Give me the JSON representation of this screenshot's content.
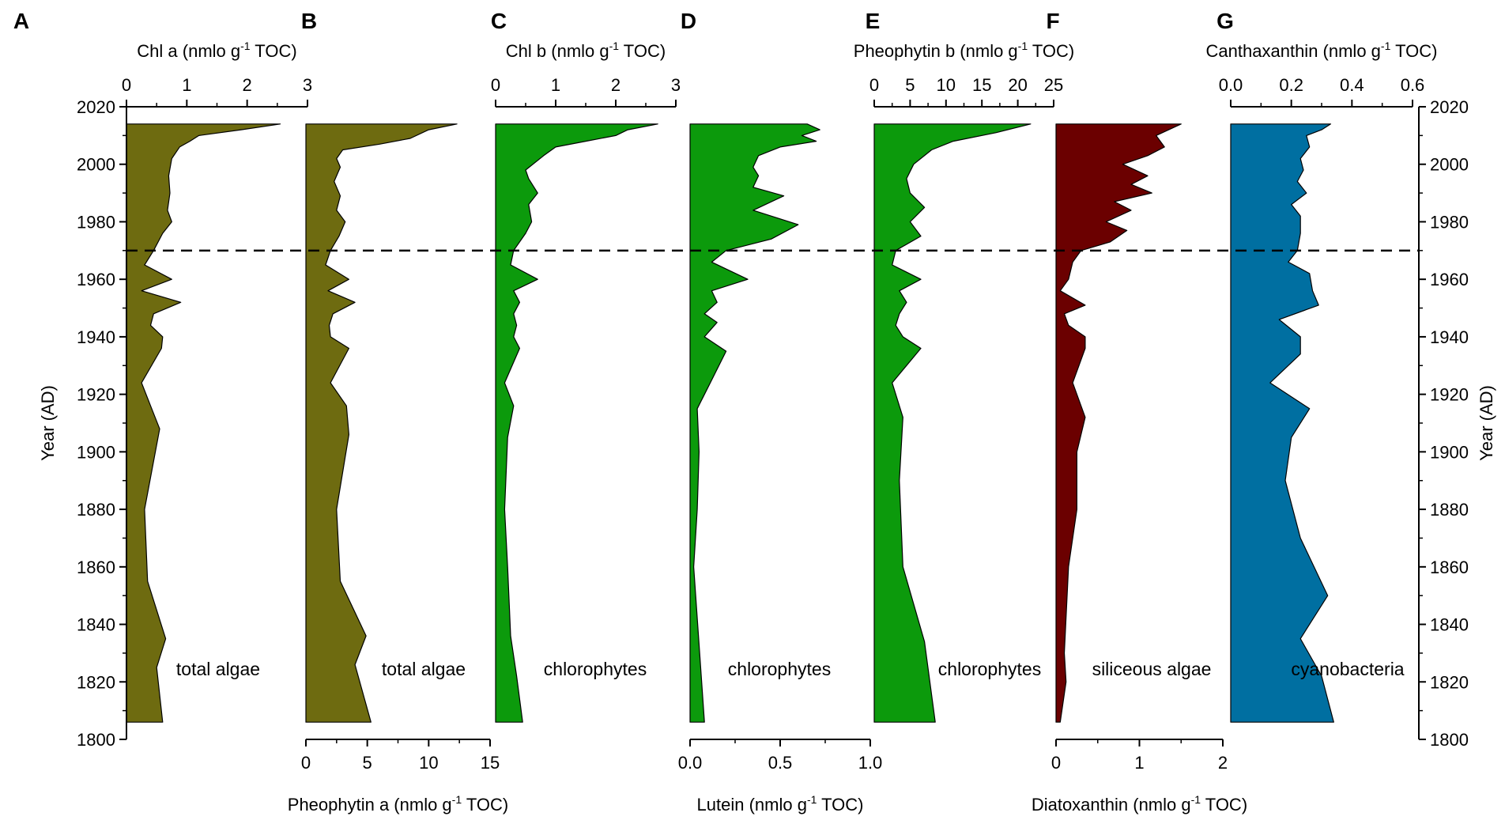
{
  "chart_data": {
    "type": "area",
    "orientation": "vertical-stratigraphic",
    "y_axis": {
      "label": "Year (AD)",
      "range": [
        1800,
        2020
      ],
      "ticks": [
        "2020",
        "2000",
        "1980",
        "1960",
        "1940",
        "1920",
        "1900",
        "1880",
        "1860",
        "1840",
        "1820",
        "1800"
      ]
    },
    "reference_line": {
      "year": 1970,
      "style": "dashed"
    },
    "panels": [
      {
        "letter": "A",
        "series_name": "Chl a",
        "axis_label": {
          "main": "Chl a (nmlo g",
          "sup": "-1",
          "tail": " TOC)"
        },
        "axis_position": "top",
        "range": [
          0,
          3
        ],
        "ticks": [
          "0",
          "1",
          "2",
          "3"
        ],
        "color": "#6e6b10",
        "group_label": "total algae",
        "data": [
          [
            2014,
            2.55
          ],
          [
            2012,
            1.9
          ],
          [
            2010,
            1.2
          ],
          [
            2008,
            1.05
          ],
          [
            2006,
            0.88
          ],
          [
            2002,
            0.75
          ],
          [
            1996,
            0.7
          ],
          [
            1990,
            0.72
          ],
          [
            1984,
            0.68
          ],
          [
            1980,
            0.75
          ],
          [
            1976,
            0.6
          ],
          [
            1970,
            0.45
          ],
          [
            1965,
            0.3
          ],
          [
            1960,
            0.75
          ],
          [
            1956,
            0.25
          ],
          [
            1952,
            0.9
          ],
          [
            1948,
            0.45
          ],
          [
            1944,
            0.4
          ],
          [
            1940,
            0.6
          ],
          [
            1936,
            0.58
          ],
          [
            1924,
            0.25
          ],
          [
            1916,
            0.4
          ],
          [
            1908,
            0.55
          ],
          [
            1880,
            0.3
          ],
          [
            1855,
            0.35
          ],
          [
            1835,
            0.65
          ],
          [
            1825,
            0.5
          ],
          [
            1806,
            0.6
          ]
        ]
      },
      {
        "letter": "B",
        "series_name": "Pheophytin a",
        "axis_label": {
          "main": "Pheophytin a (nmlo g",
          "sup": "-1",
          "tail": " TOC)"
        },
        "axis_position": "bottom",
        "range": [
          0,
          15
        ],
        "ticks": [
          "0",
          "5",
          "10",
          "15"
        ],
        "color": "#6e6b10",
        "group_label": "total algae",
        "data": [
          [
            2014,
            12.3
          ],
          [
            2012,
            10.0
          ],
          [
            2009,
            8.5
          ],
          [
            2007,
            6.0
          ],
          [
            2005,
            3.0
          ],
          [
            2002,
            2.5
          ],
          [
            1999,
            2.8
          ],
          [
            1994,
            2.3
          ],
          [
            1989,
            2.8
          ],
          [
            1984,
            2.5
          ],
          [
            1980,
            3.2
          ],
          [
            1975,
            2.7
          ],
          [
            1970,
            2.0
          ],
          [
            1965,
            1.6
          ],
          [
            1960,
            3.5
          ],
          [
            1956,
            1.8
          ],
          [
            1952,
            4.0
          ],
          [
            1948,
            2.2
          ],
          [
            1944,
            1.9
          ],
          [
            1940,
            2.0
          ],
          [
            1936,
            3.5
          ],
          [
            1924,
            2.0
          ],
          [
            1916,
            3.3
          ],
          [
            1906,
            3.5
          ],
          [
            1880,
            2.5
          ],
          [
            1855,
            2.8
          ],
          [
            1836,
            4.9
          ],
          [
            1826,
            4.0
          ],
          [
            1806,
            5.3
          ]
        ]
      },
      {
        "letter": "C",
        "series_name": "Chl b",
        "axis_label": {
          "main": "Chl b (nmlo g",
          "sup": "-1",
          "tail": " TOC)"
        },
        "axis_position": "top",
        "range": [
          0,
          3
        ],
        "ticks": [
          "0",
          "1",
          "2",
          "3"
        ],
        "color": "#0c9a0c",
        "group_label": "chlorophytes",
        "data": [
          [
            2014,
            2.7
          ],
          [
            2012,
            2.2
          ],
          [
            2010,
            2.0
          ],
          [
            2008,
            1.5
          ],
          [
            2006,
            1.0
          ],
          [
            2003,
            0.8
          ],
          [
            1998,
            0.5
          ],
          [
            1995,
            0.55
          ],
          [
            1990,
            0.7
          ],
          [
            1986,
            0.55
          ],
          [
            1980,
            0.6
          ],
          [
            1976,
            0.5
          ],
          [
            1970,
            0.3
          ],
          [
            1965,
            0.25
          ],
          [
            1960,
            0.7
          ],
          [
            1956,
            0.3
          ],
          [
            1952,
            0.4
          ],
          [
            1948,
            0.3
          ],
          [
            1944,
            0.35
          ],
          [
            1940,
            0.3
          ],
          [
            1936,
            0.4
          ],
          [
            1924,
            0.15
          ],
          [
            1916,
            0.3
          ],
          [
            1905,
            0.2
          ],
          [
            1880,
            0.15
          ],
          [
            1860,
            0.2
          ],
          [
            1836,
            0.25
          ],
          [
            1822,
            0.35
          ],
          [
            1806,
            0.45
          ]
        ]
      },
      {
        "letter": "D",
        "series_name": "Lutein",
        "axis_label": {
          "main": "Lutein (nmlo g",
          "sup": "-1",
          "tail": " TOC)"
        },
        "axis_position": "bottom",
        "range": [
          0,
          1
        ],
        "ticks": [
          "0.0",
          "0.5",
          "1.0"
        ],
        "color": "#0c9a0c",
        "group_label": "chlorophytes",
        "data": [
          [
            2014,
            0.65
          ],
          [
            2012,
            0.72
          ],
          [
            2010,
            0.62
          ],
          [
            2008,
            0.7
          ],
          [
            2006,
            0.5
          ],
          [
            2003,
            0.38
          ],
          [
            1999,
            0.35
          ],
          [
            1996,
            0.38
          ],
          [
            1992,
            0.35
          ],
          [
            1989,
            0.52
          ],
          [
            1984,
            0.35
          ],
          [
            1979,
            0.6
          ],
          [
            1974,
            0.45
          ],
          [
            1970,
            0.2
          ],
          [
            1966,
            0.12
          ],
          [
            1960,
            0.32
          ],
          [
            1956,
            0.12
          ],
          [
            1952,
            0.15
          ],
          [
            1948,
            0.08
          ],
          [
            1945,
            0.15
          ],
          [
            1940,
            0.08
          ],
          [
            1935,
            0.2
          ],
          [
            1925,
            0.12
          ],
          [
            1915,
            0.04
          ],
          [
            1900,
            0.05
          ],
          [
            1880,
            0.04
          ],
          [
            1860,
            0.02
          ],
          [
            1806,
            0.08
          ]
        ]
      },
      {
        "letter": "E",
        "series_name": "Pheophytin b",
        "axis_label": {
          "main": "Pheophytin b (nmlo g",
          "sup": "-1",
          "tail": " TOC)"
        },
        "axis_position": "top",
        "range": [
          0,
          25
        ],
        "ticks": [
          "0",
          "5",
          "10",
          "15",
          "20",
          "25"
        ],
        "color": "#0c9a0c",
        "group_label": "chlorophytes",
        "data": [
          [
            2014,
            21.8
          ],
          [
            2011,
            17.0
          ],
          [
            2008,
            11.0
          ],
          [
            2005,
            8.0
          ],
          [
            2000,
            5.5
          ],
          [
            1995,
            4.5
          ],
          [
            1990,
            5.0
          ],
          [
            1985,
            7.0
          ],
          [
            1980,
            5.0
          ],
          [
            1975,
            6.5
          ],
          [
            1970,
            3.0
          ],
          [
            1965,
            2.5
          ],
          [
            1960,
            6.5
          ],
          [
            1956,
            3.5
          ],
          [
            1952,
            4.5
          ],
          [
            1948,
            3.5
          ],
          [
            1944,
            3.0
          ],
          [
            1940,
            4.0
          ],
          [
            1936,
            6.5
          ],
          [
            1924,
            2.5
          ],
          [
            1912,
            4.0
          ],
          [
            1890,
            3.5
          ],
          [
            1860,
            4.0
          ],
          [
            1834,
            7.0
          ],
          [
            1806,
            8.5
          ]
        ]
      },
      {
        "letter": "F",
        "series_name": "Diatoxanthin",
        "axis_label": {
          "main": "Diatoxanthin (nmlo g",
          "sup": "-1",
          "tail": " TOC)"
        },
        "axis_position": "bottom",
        "range": [
          0,
          2
        ],
        "ticks": [
          "0",
          "1",
          "2"
        ],
        "color": "#6b0000",
        "group_label": "siliceous algae",
        "data": [
          [
            2014,
            1.5
          ],
          [
            2010,
            1.2
          ],
          [
            2006,
            1.3
          ],
          [
            2003,
            1.1
          ],
          [
            2000,
            0.8
          ],
          [
            1996,
            1.1
          ],
          [
            1993,
            0.9
          ],
          [
            1990,
            1.15
          ],
          [
            1987,
            0.7
          ],
          [
            1984,
            0.9
          ],
          [
            1980,
            0.6
          ],
          [
            1977,
            0.85
          ],
          [
            1973,
            0.65
          ],
          [
            1970,
            0.3
          ],
          [
            1966,
            0.2
          ],
          [
            1960,
            0.15
          ],
          [
            1956,
            0.05
          ],
          [
            1951,
            0.35
          ],
          [
            1948,
            0.1
          ],
          [
            1944,
            0.15
          ],
          [
            1940,
            0.35
          ],
          [
            1936,
            0.35
          ],
          [
            1924,
            0.2
          ],
          [
            1912,
            0.35
          ],
          [
            1900,
            0.25
          ],
          [
            1880,
            0.25
          ],
          [
            1860,
            0.15
          ],
          [
            1830,
            0.1
          ],
          [
            1820,
            0.12
          ],
          [
            1806,
            0.05
          ]
        ]
      },
      {
        "letter": "G",
        "series_name": "Canthaxanthin",
        "axis_label": {
          "main": "Canthaxanthin (nmlo g",
          "sup": "-1",
          "tail": " TOC)"
        },
        "axis_position": "top",
        "range": [
          0,
          0.6
        ],
        "ticks": [
          "0.0",
          "0.2",
          "0.4",
          "0.6"
        ],
        "color": "#006fa1",
        "group_label": "cyanobacteria",
        "data": [
          [
            2014,
            0.33
          ],
          [
            2012,
            0.3
          ],
          [
            2010,
            0.25
          ],
          [
            2006,
            0.26
          ],
          [
            2002,
            0.23
          ],
          [
            1998,
            0.24
          ],
          [
            1994,
            0.22
          ],
          [
            1990,
            0.25
          ],
          [
            1986,
            0.2
          ],
          [
            1982,
            0.23
          ],
          [
            1976,
            0.23
          ],
          [
            1970,
            0.22
          ],
          [
            1966,
            0.19
          ],
          [
            1962,
            0.26
          ],
          [
            1956,
            0.27
          ],
          [
            1951,
            0.29
          ],
          [
            1946,
            0.16
          ],
          [
            1940,
            0.23
          ],
          [
            1934,
            0.23
          ],
          [
            1924,
            0.13
          ],
          [
            1915,
            0.26
          ],
          [
            1905,
            0.2
          ],
          [
            1890,
            0.18
          ],
          [
            1870,
            0.23
          ],
          [
            1850,
            0.32
          ],
          [
            1835,
            0.23
          ],
          [
            1822,
            0.3
          ],
          [
            1806,
            0.34
          ]
        ]
      }
    ]
  }
}
